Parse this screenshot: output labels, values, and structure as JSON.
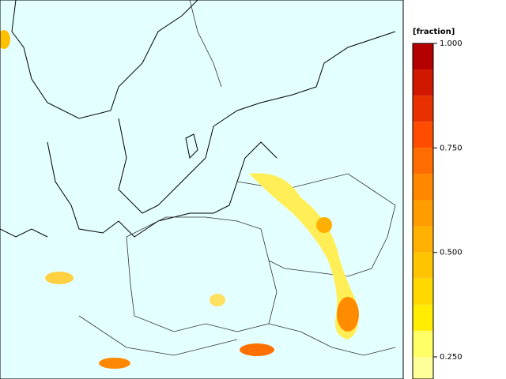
{
  "colorbar": {
    "label": "[fraction]",
    "levels": [
      0.1875,
      0.25,
      0.3125,
      0.375,
      0.4375,
      0.5,
      0.5625,
      0.625,
      0.6875,
      0.75,
      0.8125,
      0.875,
      0.9375,
      1.0
    ],
    "colors": [
      "#ffff99",
      "#ffff66",
      "#ffec00",
      "#ffd800",
      "#ffc400",
      "#ffb000",
      "#ff9c00",
      "#ff8800",
      "#ff6c00",
      "#ff4c00",
      "#e83000",
      "#d01800",
      "#b40000"
    ],
    "ticks": [
      {
        "value": 0.25,
        "label": "0.250"
      },
      {
        "value": 0.5,
        "label": "0.500"
      },
      {
        "value": 0.75,
        "label": "0.750"
      },
      {
        "value": 1.0,
        "label": "1.000"
      }
    ]
  }
}
